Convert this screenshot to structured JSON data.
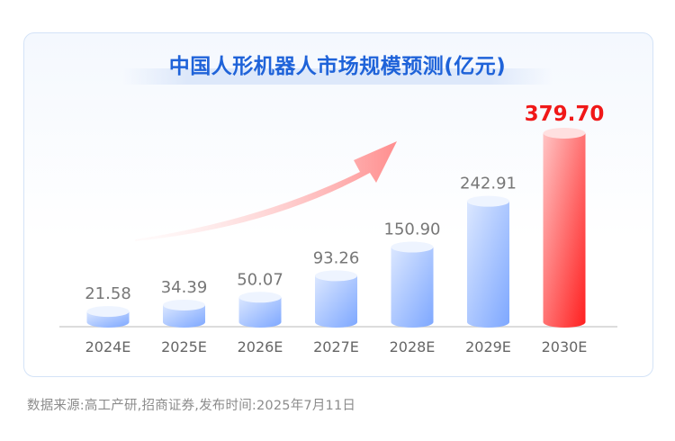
{
  "chart_data": {
    "type": "bar",
    "title": "中国人形机器人市场规模预测(亿元)",
    "categories": [
      "2024E",
      "2025E",
      "2026E",
      "2027E",
      "2028E",
      "2029E",
      "2030E"
    ],
    "values": [
      21.58,
      34.39,
      50.07,
      93.26,
      150.9,
      242.91,
      379.7
    ],
    "value_labels": [
      "21.58",
      "34.39",
      "50.07",
      "93.26",
      "150.90",
      "242.91",
      "379.70"
    ],
    "highlight_index": 6,
    "xlabel": "",
    "ylabel": "",
    "ylim": [
      0,
      400
    ],
    "grid": false,
    "legend": "none"
  },
  "colors": {
    "title": "#1f63d9",
    "bar_top": "#dbe7ff",
    "bar_bottom": "#7da7ff",
    "highlight_top": "#ffc4c4",
    "highlight_bottom": "#ff1f1f",
    "highlight_label": "#f01818",
    "label": "#777777",
    "arrow": "#ff8e8e"
  },
  "footer": {
    "source": "数据来源:高工产研,招商证券,发布时间:2025年7月11日"
  }
}
